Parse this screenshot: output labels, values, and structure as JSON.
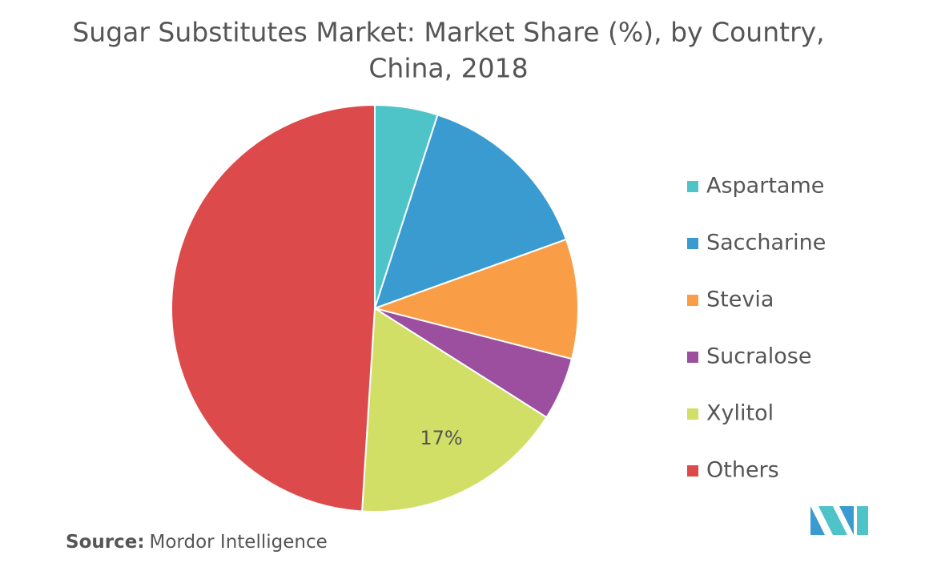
{
  "chart_data": {
    "type": "pie",
    "title": [
      "Sugar Substitutes Market: Market Share (%), by Country,",
      "China, 2018"
    ],
    "categories": [
      "Aspartame",
      "Saccharine",
      "Stevia",
      "Sucralose",
      "Xylitol",
      "Others"
    ],
    "values": [
      5,
      14.5,
      9.5,
      5,
      17,
      49
    ],
    "value_labels": [
      null,
      null,
      null,
      null,
      "17%",
      null
    ],
    "colors": [
      "#4fc4c8",
      "#3a9bd1",
      "#f99e47",
      "#9b4f9e",
      "#d2df66",
      "#dd4a4b"
    ],
    "legend": "right",
    "source_label": "Source:",
    "source": "Mordor Intelligence"
  }
}
